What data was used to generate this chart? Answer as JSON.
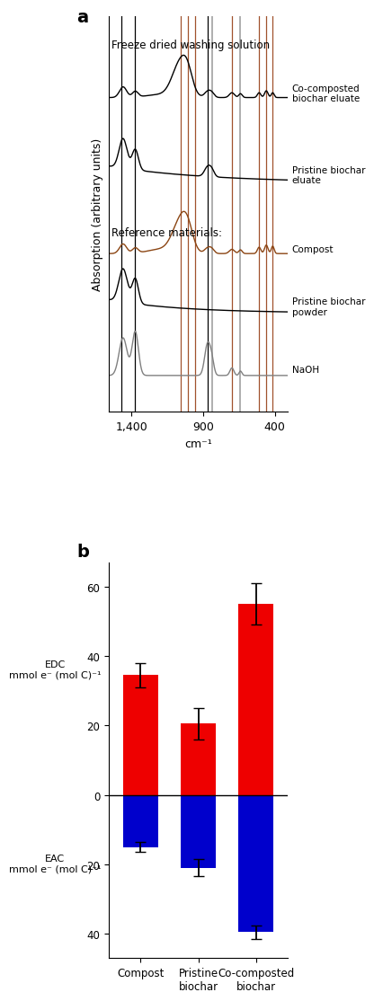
{
  "panel_a": {
    "title": "Freeze dried washing solution",
    "ref_title": "Reference materials:",
    "xlabel": "cm⁻¹",
    "ylabel": "Absorption (arbitrary units)",
    "xmin": 1560,
    "xmax": 310,
    "black_vlines": [
      1475,
      1375,
      870
    ],
    "brown_vlines": [
      1060,
      1010,
      960,
      700,
      510,
      460,
      415
    ],
    "gray_vlines": [
      840,
      640
    ],
    "xticks": [
      1400,
      900,
      400
    ],
    "xtick_labels": [
      "1,400",
      "900",
      "400"
    ]
  },
  "panel_b": {
    "categories": [
      "Compost",
      "Pristine\nbiochar",
      "Co-composted\nbiochar"
    ],
    "edc_values": [
      34.5,
      20.5,
      55.0
    ],
    "eac_values": [
      -15.0,
      -21.0,
      -39.5
    ],
    "edc_errors": [
      3.5,
      4.5,
      6.0
    ],
    "eac_errors": [
      1.5,
      2.5,
      2.0
    ],
    "edc_color": "#EE0000",
    "eac_color": "#0000CC",
    "bar_width": 0.6,
    "ylim_top": 67,
    "ylim_bottom": -47,
    "yticks": [
      60,
      40,
      20,
      0,
      -20,
      -40
    ],
    "ytick_labels": [
      "60",
      "40",
      "20",
      "0",
      "20",
      "40"
    ],
    "ylabel_edc": "EDC\nmmol e⁻ (mol C)⁻¹",
    "ylabel_eac": "EAC\nmmol e⁻ (mol C)⁻¹",
    "x_positions": [
      0,
      1,
      2
    ]
  }
}
